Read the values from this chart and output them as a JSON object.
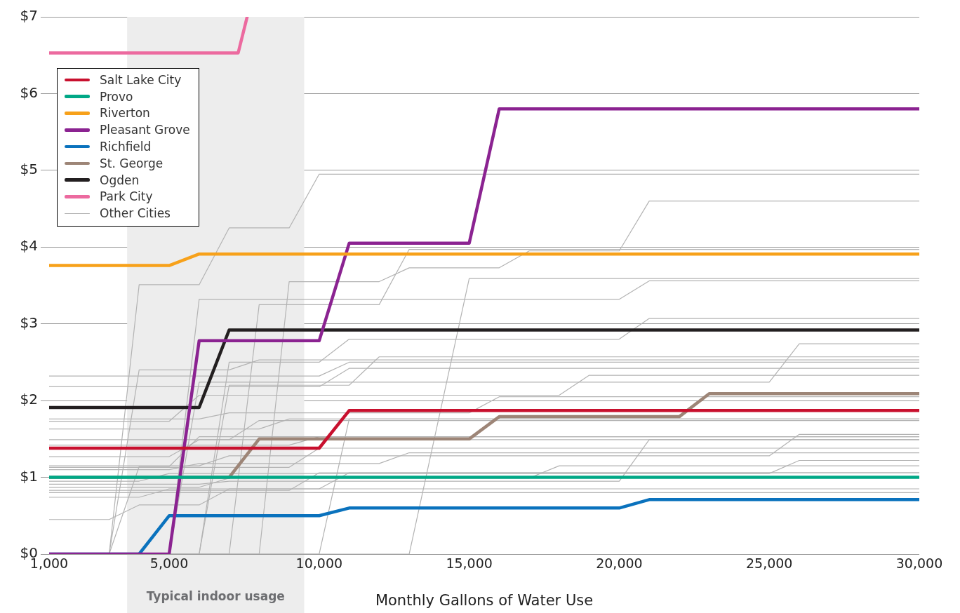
{
  "chart_data": {
    "type": "line",
    "xlabel": "Monthly Gallons of Water Use",
    "xlim": [
      1000,
      30000
    ],
    "xticks": [
      {
        "value": 1000,
        "label": "1,000"
      },
      {
        "value": 5000,
        "label": "5,000"
      },
      {
        "value": 10000,
        "label": "10,000"
      },
      {
        "value": 15000,
        "label": "15,000"
      },
      {
        "value": 20000,
        "label": "20,000"
      },
      {
        "value": 25000,
        "label": "25,000"
      },
      {
        "value": 30000,
        "label": "30,000"
      }
    ],
    "ylim": [
      0,
      7
    ],
    "yticks": [
      {
        "value": 0,
        "label": "$0"
      },
      {
        "value": 1,
        "label": "$1"
      },
      {
        "value": 2,
        "label": "$2"
      },
      {
        "value": 3,
        "label": "$3"
      },
      {
        "value": 4,
        "label": "$4"
      },
      {
        "value": 5,
        "label": "$5"
      },
      {
        "value": 6,
        "label": "$6"
      },
      {
        "value": 7,
        "label": "$7"
      }
    ],
    "grid": "y",
    "legend": "top left",
    "marker": "none",
    "line_style": "solid",
    "bands": [
      {
        "axis": "x",
        "from": 3600,
        "to": 9500,
        "label": "Typical indoor usage",
        "color": "#ededed"
      }
    ],
    "series": [
      {
        "name": "Salt Lake City",
        "color": "#c8102e",
        "x": [
          1000,
          10000,
          11000,
          30000
        ],
        "values": [
          1.38,
          1.38,
          1.87,
          1.87
        ]
      },
      {
        "name": "Provo",
        "color": "#00a886",
        "x": [
          1000,
          30000
        ],
        "values": [
          1.0,
          1.0
        ]
      },
      {
        "name": "Riverton",
        "color": "#f7a11a",
        "x": [
          1000,
          5000,
          6000,
          30000
        ],
        "values": [
          3.76,
          3.76,
          3.91,
          3.91
        ]
      },
      {
        "name": "Pleasant Grove",
        "color": "#8b2391",
        "x": [
          1000,
          5000,
          6000,
          10000,
          11000,
          15000,
          16000,
          30000
        ],
        "values": [
          0,
          0,
          2.78,
          2.78,
          4.05,
          4.05,
          5.8,
          5.8
        ]
      },
      {
        "name": "Richfield",
        "color": "#0a72bd",
        "x": [
          1000,
          4000,
          5000,
          10000,
          11000,
          20000,
          21000,
          30000
        ],
        "values": [
          0,
          0,
          0.5,
          0.5,
          0.6,
          0.6,
          0.71,
          0.71
        ]
      },
      {
        "name": "St. George",
        "color": "#9d8577",
        "x": [
          1000,
          7000,
          8000,
          15000,
          16000,
          22000,
          23000,
          30000
        ],
        "values": [
          1.0,
          1.0,
          1.5,
          1.5,
          1.79,
          1.79,
          2.09,
          2.09
        ]
      },
      {
        "name": "Ogden",
        "color": "#231f20",
        "x": [
          1000,
          6000,
          7000,
          30000
        ],
        "values": [
          1.91,
          1.91,
          2.92,
          2.92
        ]
      },
      {
        "name": "Park City",
        "color": "#ec6a9f",
        "x": [
          1000,
          7300,
          7600
        ],
        "values": [
          6.53,
          6.53,
          7
        ]
      },
      {
        "name": "Other Cities",
        "color": "#b3b3b3",
        "x": [
          1000,
          3000,
          4000,
          6000,
          7000,
          9000,
          10000,
          30000
        ],
        "values": [
          0,
          0,
          3.51,
          3.51,
          4.25,
          4.25,
          4.95,
          4.95
        ]
      },
      {
        "color": "#b3b3b3",
        "x": [
          1000,
          8000,
          9000,
          12000,
          13000,
          16000,
          17000,
          20000,
          21000,
          30000
        ],
        "values": [
          0,
          0,
          3.55,
          3.55,
          3.73,
          3.73,
          3.95,
          3.95,
          4.6,
          4.6
        ]
      },
      {
        "color": "#b3b3b3",
        "x": [
          1000,
          7000,
          8000,
          12000,
          13000,
          30000
        ],
        "values": [
          0,
          0,
          3.25,
          3.25,
          3.97,
          3.97
        ]
      },
      {
        "color": "#b3b3b3",
        "x": [
          1000,
          13000,
          15000,
          30000
        ],
        "values": [
          0,
          0,
          3.59,
          3.59
        ]
      },
      {
        "color": "#b3b3b3",
        "x": [
          1000,
          5000,
          6000,
          20000,
          21000,
          30000
        ],
        "values": [
          0,
          0,
          3.32,
          3.32,
          3.56,
          3.56
        ]
      },
      {
        "color": "#b3b3b3",
        "x": [
          1000,
          6000,
          7000,
          10000,
          11000,
          20000,
          21000,
          30000
        ],
        "values": [
          0,
          0,
          2.5,
          2.5,
          2.8,
          2.8,
          3.07,
          3.07
        ]
      },
      {
        "color": "#b3b3b3",
        "x": [
          1000,
          5000,
          6000,
          25000,
          26000,
          30000
        ],
        "values": [
          0,
          0,
          2.24,
          2.24,
          2.74,
          2.74
        ]
      },
      {
        "color": "#b3b3b3",
        "x": [
          1000,
          6000,
          7000,
          11000,
          12000,
          30000
        ],
        "values": [
          0,
          0,
          2.2,
          2.2,
          2.57,
          2.57
        ]
      },
      {
        "color": "#b3b3b3",
        "x": [
          1000,
          3000,
          4000,
          7000,
          8000,
          30000
        ],
        "values": [
          0,
          0,
          2.4,
          2.4,
          2.53,
          2.53
        ]
      },
      {
        "color": "#b3b3b3",
        "x": [
          1000,
          3000,
          4000,
          5000,
          6000,
          30000
        ],
        "values": [
          0,
          0,
          1.14,
          1.14,
          1.53,
          1.53
        ]
      },
      {
        "color": "#b3b3b3",
        "x": [
          1000,
          10000,
          11000,
          30000
        ],
        "values": [
          0,
          0,
          1.76,
          1.76
        ]
      },
      {
        "color": "#b3b3b3",
        "x": [
          1000,
          10000,
          11000,
          30000
        ],
        "values": [
          2.32,
          2.32,
          2.5,
          2.5
        ]
      },
      {
        "color": "#b3b3b3",
        "x": [
          1000,
          10000,
          11000,
          30000
        ],
        "values": [
          2.18,
          2.18,
          2.42,
          2.42
        ]
      },
      {
        "color": "#b3b3b3",
        "x": [
          1000,
          6000,
          7000,
          15000,
          16000,
          30000
        ],
        "values": [
          1.76,
          1.76,
          1.84,
          1.84,
          2.05,
          2.05
        ]
      },
      {
        "color": "#b3b3b3",
        "x": [
          1000,
          5000,
          6000,
          18000,
          19000,
          30000
        ],
        "values": [
          1.73,
          1.73,
          2.07,
          2.07,
          2.33,
          2.33
        ]
      },
      {
        "color": "#b3b3b3",
        "x": [
          1000,
          8000,
          9000,
          30000
        ],
        "values": [
          1.63,
          1.63,
          1.76,
          1.76
        ]
      },
      {
        "color": "#b3b3b3",
        "x": [
          1000,
          7000,
          8000,
          30000
        ],
        "values": [
          1.49,
          1.49,
          1.74,
          1.74
        ]
      },
      {
        "color": "#b3b3b3",
        "x": [
          1000,
          9000,
          10000,
          30000
        ],
        "values": [
          1.42,
          1.42,
          1.53,
          1.53
        ]
      },
      {
        "color": "#b3b3b3",
        "x": [
          1000,
          6000,
          7000,
          25000,
          26000,
          30000
        ],
        "values": [
          1.15,
          1.15,
          1.28,
          1.28,
          1.56,
          1.56
        ]
      },
      {
        "color": "#b3b3b3",
        "x": [
          1000,
          5000,
          6000,
          30000
        ],
        "values": [
          1.27,
          1.27,
          1.49,
          1.49
        ]
      },
      {
        "color": "#b3b3b3",
        "x": [
          1000,
          9000,
          10000,
          30000
        ],
        "values": [
          1.13,
          1.13,
          1.38,
          1.38
        ]
      },
      {
        "color": "#b3b3b3",
        "x": [
          1000,
          5000,
          6000,
          12000,
          13000,
          30000
        ],
        "values": [
          1.1,
          1.1,
          1.18,
          1.18,
          1.32,
          1.32
        ]
      },
      {
        "color": "#b3b3b3",
        "x": [
          1000,
          4000,
          5000,
          25000,
          26000,
          30000
        ],
        "values": [
          0.95,
          0.95,
          1.05,
          1.05,
          1.22,
          1.22
        ]
      },
      {
        "color": "#b3b3b3",
        "x": [
          1000,
          6000,
          7000,
          20000,
          21000,
          30000
        ],
        "values": [
          0.91,
          0.91,
          0.95,
          0.95,
          1.49,
          1.49
        ]
      },
      {
        "color": "#b3b3b3",
        "x": [
          1000,
          6000,
          7000,
          17000,
          18000,
          30000
        ],
        "values": [
          0.87,
          0.87,
          0.99,
          0.99,
          1.15,
          1.15
        ]
      },
      {
        "color": "#b3b3b3",
        "x": [
          1000,
          9000,
          10000,
          30000
        ],
        "values": [
          0.83,
          0.83,
          1.06,
          1.06
        ]
      },
      {
        "color": "#b3b3b3",
        "x": [
          1000,
          30000
        ],
        "values": [
          0.8,
          0.8
        ]
      },
      {
        "color": "#b3b3b3",
        "x": [
          1000,
          4000,
          5000,
          10000,
          11000,
          30000
        ],
        "values": [
          0.74,
          0.74,
          0.85,
          0.85,
          1.06,
          1.06
        ]
      },
      {
        "color": "#b3b3b3",
        "x": [
          1000,
          3000,
          4000,
          6000,
          7000,
          30000
        ],
        "values": [
          0.45,
          0.45,
          0.64,
          0.64,
          0.85,
          0.85
        ]
      }
    ]
  }
}
